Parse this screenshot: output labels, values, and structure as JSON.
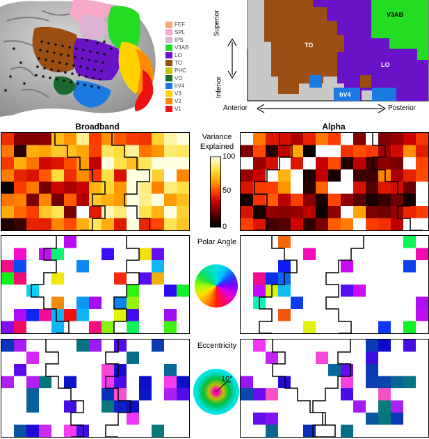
{
  "legend": [
    {
      "label": "FEF",
      "color": "#f6a877"
    },
    {
      "label": "SPL",
      "color": "#f8a8c8"
    },
    {
      "label": "IPS",
      "color": "#d9b3d0"
    },
    {
      "label": "V3AB",
      "color": "#22dd22"
    },
    {
      "label": "LO",
      "color": "#6a12c8"
    },
    {
      "label": "TO",
      "color": "#9a4e12"
    },
    {
      "label": "PHC",
      "color": "#c4c400"
    },
    {
      "label": "VO",
      "color": "#1a6a30"
    },
    {
      "label": "hV4",
      "color": "#1a7ae0"
    },
    {
      "label": "V3",
      "color": "#ffd200"
    },
    {
      "label": "V2",
      "color": "#ff8c00"
    },
    {
      "label": "V1",
      "color": "#ee1111"
    }
  ],
  "roi_map": {
    "superior": "Superior",
    "inferior": "Inferior",
    "anterior": "Anterior",
    "posterior": "Posterior",
    "labels": {
      "to": "TO",
      "lo": "LO",
      "v3ab": "V3AB",
      "hv4": "hV4"
    }
  },
  "columns": {
    "left": "Broadband",
    "right": "Alpha"
  },
  "rows": {
    "variance_title": "Variance\nExplained",
    "polar_title": "Polar Angle",
    "ecc_title": "Eccentricity"
  },
  "colorbar": {
    "max": "100",
    "mid": "50",
    "min": "0"
  },
  "eccentricity_key": {
    "label": "10°"
  }
}
